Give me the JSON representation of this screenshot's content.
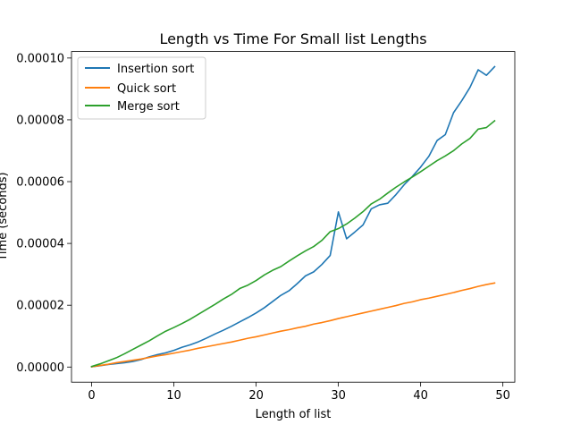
{
  "chart_data": {
    "type": "line",
    "title": "Length vs Time For Small list Lengths",
    "xlabel": "Length of list",
    "ylabel": "Time (seconds)",
    "xlim": [
      -2.45,
      51.45
    ],
    "ylim": [
      -4.9e-06,
      0.0001021
    ],
    "xticks": [
      0,
      10,
      20,
      30,
      40,
      50
    ],
    "xtick_labels": [
      "0",
      "10",
      "20",
      "30",
      "40",
      "50"
    ],
    "yticks": [
      0,
      2e-05,
      4e-05,
      6e-05,
      8e-05,
      0.0001
    ],
    "ytick_labels": [
      "0.00000",
      "0.00002",
      "0.00004",
      "0.00006",
      "0.00008",
      "0.00010"
    ],
    "grid": false,
    "legend_position": "top-left",
    "x": [
      0,
      1,
      2,
      3,
      4,
      5,
      6,
      7,
      8,
      9,
      10,
      11,
      12,
      13,
      14,
      15,
      16,
      17,
      18,
      19,
      20,
      21,
      22,
      23,
      24,
      25,
      26,
      27,
      28,
      29,
      30,
      31,
      32,
      33,
      34,
      35,
      36,
      37,
      38,
      39,
      40,
      41,
      42,
      43,
      44,
      45,
      46,
      47,
      48,
      49
    ],
    "series": [
      {
        "name": "Insertion sort",
        "color": "#1f77b4",
        "values": [
          1e-07,
          4e-07,
          8e-07,
          1.1e-06,
          1.4e-06,
          1.8e-06,
          2.4e-06,
          3.3e-06,
          4e-06,
          4.6e-06,
          5.4e-06,
          6.4e-06,
          7.2e-06,
          8.2e-06,
          9.4e-06,
          1.07e-05,
          1.19e-05,
          1.32e-05,
          1.46e-05,
          1.6e-05,
          1.75e-05,
          1.92e-05,
          2.12e-05,
          2.32e-05,
          2.47e-05,
          2.7e-05,
          2.95e-05,
          3.08e-05,
          3.32e-05,
          3.61e-05,
          5.02e-05,
          4.15e-05,
          4.37e-05,
          4.6e-05,
          5.12e-05,
          5.25e-05,
          5.3e-05,
          5.58e-05,
          5.9e-05,
          6.17e-05,
          6.47e-05,
          6.82e-05,
          7.33e-05,
          7.52e-05,
          8.23e-05,
          8.62e-05,
          9.05e-05,
          9.62e-05,
          9.44e-05,
          9.72e-05
        ]
      },
      {
        "name": "Quick sort",
        "color": "#ff7f0e",
        "values": [
          1e-07,
          5e-07,
          9e-07,
          1.4e-06,
          1.8e-06,
          2.2e-06,
          2.6e-06,
          3.1e-06,
          3.6e-06,
          4e-06,
          4.5e-06,
          5e-06,
          5.5e-06,
          6.1e-06,
          6.6e-06,
          7.1e-06,
          7.6e-06,
          8.1e-06,
          8.7e-06,
          9.3e-06,
          9.8e-06,
          1.04e-05,
          1.1e-05,
          1.16e-05,
          1.21e-05,
          1.27e-05,
          1.32e-05,
          1.39e-05,
          1.44e-05,
          1.5e-05,
          1.57e-05,
          1.63e-05,
          1.69e-05,
          1.75e-05,
          1.81e-05,
          1.87e-05,
          1.93e-05,
          1.99e-05,
          2.06e-05,
          2.11e-05,
          2.18e-05,
          2.23e-05,
          2.29e-05,
          2.35e-05,
          2.41e-05,
          2.48e-05,
          2.54e-05,
          2.61e-05,
          2.67e-05,
          2.72e-05
        ]
      },
      {
        "name": "Merge sort",
        "color": "#2ca02c",
        "values": [
          2e-07,
          1e-06,
          2e-06,
          3e-06,
          4.3e-06,
          5.7e-06,
          7.1e-06,
          8.5e-06,
          1.01e-05,
          1.16e-05,
          1.28e-05,
          1.41e-05,
          1.55e-05,
          1.71e-05,
          1.87e-05,
          2.03e-05,
          2.2e-05,
          2.35e-05,
          2.54e-05,
          2.65e-05,
          2.8e-05,
          2.98e-05,
          3.13e-05,
          3.25e-05,
          3.43e-05,
          3.6e-05,
          3.76e-05,
          3.9e-05,
          4.1e-05,
          4.38e-05,
          4.48e-05,
          4.63e-05,
          4.82e-05,
          5.03e-05,
          5.28e-05,
          5.43e-05,
          5.63e-05,
          5.82e-05,
          5.99e-05,
          6.15e-05,
          6.32e-05,
          6.5e-05,
          6.68e-05,
          6.83e-05,
          7e-05,
          7.22e-05,
          7.4e-05,
          7.7e-05,
          7.75e-05,
          7.97e-05
        ]
      }
    ]
  }
}
